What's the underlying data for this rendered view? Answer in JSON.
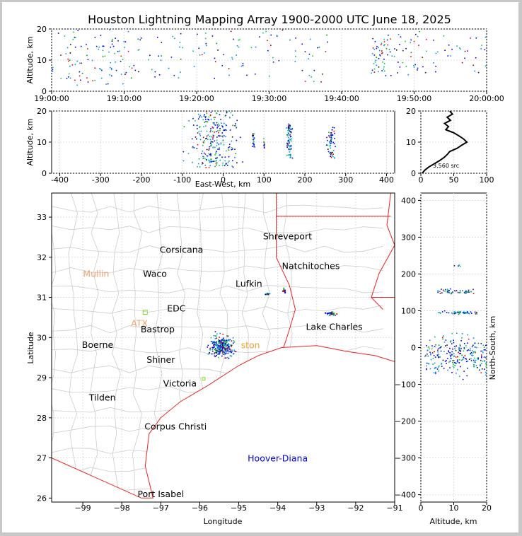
{
  "title": "Houston Lightning Mapping Array 1900-2000 UTC June 18, 2025",
  "chart_data": [
    {
      "type": "scatter",
      "panel": "time-altitude",
      "ylabel": "Altitude, km",
      "xlim": [
        "19:00:00",
        "20:00:00"
      ],
      "ylim": [
        0,
        20
      ],
      "xticks": [
        "19:00:00",
        "19:10:00",
        "19:20:00",
        "19:30:00",
        "19:40:00",
        "19:50:00",
        "20:00:00"
      ],
      "yticks": [
        0,
        10,
        20
      ],
      "clusters": [
        {
          "t": [
            0,
            10
          ],
          "alt": [
            2,
            20
          ],
          "n": 90
        },
        {
          "t": [
            10,
            26
          ],
          "alt": [
            4,
            20
          ],
          "n": 70
        },
        {
          "t": [
            26,
            38
          ],
          "alt": [
            3,
            20
          ],
          "n": 45
        },
        {
          "t": [
            44,
            46
          ],
          "alt": [
            6,
            18
          ],
          "n": 40
        },
        {
          "t": [
            46,
            52
          ],
          "alt": [
            5,
            20
          ],
          "n": 45
        },
        {
          "t": [
            52,
            60
          ],
          "alt": [
            6,
            18
          ],
          "n": 30
        }
      ]
    },
    {
      "type": "scatter",
      "panel": "east-west-altitude",
      "xlabel": "East-West, km",
      "ylabel": "Altitude, km",
      "xlim": [
        -420,
        420
      ],
      "ylim": [
        0,
        20
      ],
      "xticks": [
        -400,
        -300,
        -200,
        -100,
        0,
        100,
        200,
        300,
        400
      ],
      "yticks": [
        0,
        10,
        20
      ],
      "clusters": [
        {
          "x": [
            -110,
            60
          ],
          "alt": [
            2,
            20
          ],
          "n": 260
        },
        {
          "x": [
            68,
            78
          ],
          "alt": [
            8,
            13
          ],
          "n": 20
        },
        {
          "x": [
            95,
            102
          ],
          "alt": [
            8,
            12
          ],
          "n": 10
        },
        {
          "x": [
            150,
            170
          ],
          "alt": [
            5,
            16
          ],
          "n": 80
        },
        {
          "x": [
            248,
            280
          ],
          "alt": [
            5,
            15
          ],
          "n": 60
        }
      ]
    },
    {
      "type": "line",
      "panel": "altitude-histogram",
      "xlim": [
        0,
        100
      ],
      "ylim": [
        0,
        20
      ],
      "xticks": [
        0,
        50,
        100
      ],
      "yticks": [
        0,
        10,
        20
      ],
      "annotation": "3,560 src",
      "altitude": [
        0,
        1,
        2,
        3,
        4,
        5,
        6,
        7,
        8,
        9,
        10,
        11,
        12,
        13,
        14,
        15,
        16,
        17,
        18,
        19,
        20
      ],
      "count": [
        2,
        6,
        12,
        20,
        28,
        35,
        40,
        44,
        55,
        62,
        70,
        65,
        58,
        50,
        38,
        42,
        36,
        45,
        40,
        48,
        44
      ]
    },
    {
      "type": "scatter",
      "panel": "plan-view-map",
      "xlabel": "Longitude",
      "ylabel": "Latitude",
      "xlim": [
        -99.8,
        -91
      ],
      "ylim": [
        25.9,
        33.6
      ],
      "xticks": [
        -99,
        -98,
        -97,
        -96,
        -95,
        -94,
        -93,
        -92,
        -91
      ],
      "yticks": [
        26,
        27,
        28,
        29,
        30,
        31,
        32,
        33
      ],
      "clusters": [
        {
          "lon": [
            -95.9,
            -95.0
          ],
          "lat": [
            29.4,
            30.2
          ],
          "n": 300
        },
        {
          "lon": [
            -94.35,
            -94.2
          ],
          "lat": [
            31.07,
            31.12
          ],
          "n": 15
        },
        {
          "lon": [
            -93.92,
            -93.78
          ],
          "lat": [
            31.1,
            31.25
          ],
          "n": 20
        },
        {
          "lon": [
            -92.85,
            -92.45
          ],
          "lat": [
            30.55,
            30.68
          ],
          "n": 35
        }
      ]
    },
    {
      "type": "scatter",
      "panel": "altitude-north-south",
      "xlabel": "Altitude, km",
      "ylabel": "North-South, km",
      "xlim": [
        0,
        20
      ],
      "ylim": [
        -420,
        420
      ],
      "xticks": [
        0,
        10,
        20
      ],
      "yticks": [
        -400,
        -300,
        -200,
        -100,
        0,
        100,
        200,
        300,
        400
      ],
      "clusters": [
        {
          "alt": [
            1,
            20
          ],
          "ns": [
            -95,
            60
          ],
          "n": 240
        },
        {
          "alt": [
            5,
            17
          ],
          "ns": [
            90,
            102
          ],
          "n": 50
        },
        {
          "alt": [
            5,
            16
          ],
          "ns": [
            145,
            162
          ],
          "n": 50
        },
        {
          "alt": [
            10,
            12
          ],
          "ns": [
            220,
            228
          ],
          "n": 4
        }
      ]
    }
  ],
  "map_labels": [
    {
      "text": "Shreveport",
      "lon": -93.75,
      "lat": 32.52,
      "color": "#000000"
    },
    {
      "text": "Corsicana",
      "lon": -96.47,
      "lat": 32.18,
      "color": "#000000"
    },
    {
      "text": "Natchitoches",
      "lon": -93.15,
      "lat": 31.78,
      "color": "#000000"
    },
    {
      "text": "Mullin",
      "lon": -98.66,
      "lat": 31.58,
      "color": "#f4a070"
    },
    {
      "text": "Waco",
      "lon": -97.15,
      "lat": 31.58,
      "color": "#000000"
    },
    {
      "text": "Lufkin",
      "lon": -94.74,
      "lat": 31.34,
      "color": "#000000"
    },
    {
      "text": "EDC",
      "lon": -96.6,
      "lat": 30.72,
      "color": "#000000"
    },
    {
      "text": "ATX",
      "lon": -97.55,
      "lat": 30.35,
      "color": "#f4a070"
    },
    {
      "text": "Bastrop",
      "lon": -97.08,
      "lat": 30.2,
      "color": "#000000"
    },
    {
      "text": "Lake Charles",
      "lon": -92.55,
      "lat": 30.26,
      "color": "#000000"
    },
    {
      "text": "Boerne",
      "lon": -98.62,
      "lat": 29.81,
      "color": "#000000"
    },
    {
      "text": "ston",
      "lon": -94.7,
      "lat": 29.8,
      "color": "#f0a030"
    },
    {
      "text": "Shiner",
      "lon": -97.0,
      "lat": 29.44,
      "color": "#000000"
    },
    {
      "text": "Victoria",
      "lon": -96.51,
      "lat": 28.85,
      "color": "#000000"
    },
    {
      "text": "Tilden",
      "lon": -98.5,
      "lat": 28.5,
      "color": "#000000"
    },
    {
      "text": "Corpus Christi",
      "lon": -96.62,
      "lat": 27.78,
      "color": "#000000"
    },
    {
      "text": "Hoover-Diana",
      "lon": -94.0,
      "lat": 26.98,
      "color": "#0000ee"
    },
    {
      "text": "Port Isabel",
      "lon": -97.0,
      "lat": 26.09,
      "color": "#000000"
    }
  ],
  "colors": {
    "points": [
      "#0000ee",
      "#0088ff",
      "#00b0a0",
      "#00cc44",
      "#009900",
      "#ff0000",
      "#a00000",
      "#000000"
    ],
    "state_border": "#ee2222",
    "county": "#cccccc",
    "station_marker": "#7fdc2a"
  }
}
